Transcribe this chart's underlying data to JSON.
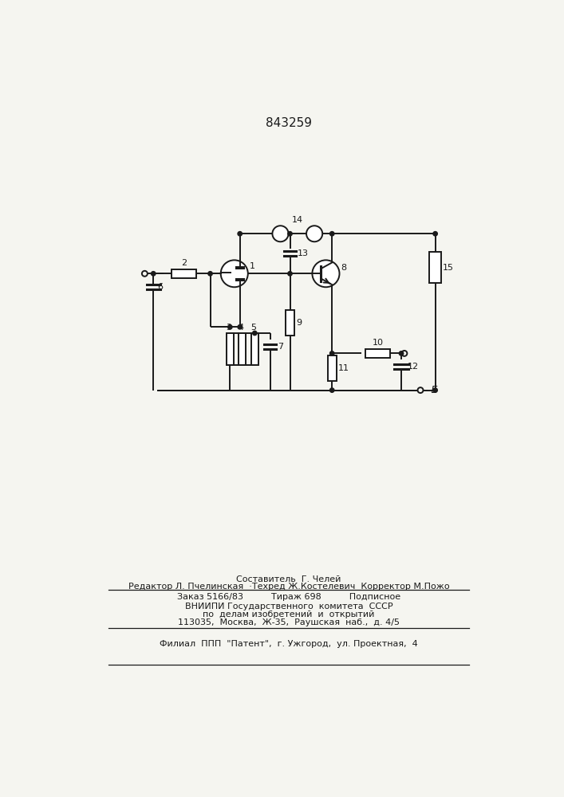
{
  "title": "843259",
  "bg_color": "#f5f5f0",
  "line_color": "#1a1a1a",
  "lw": 1.4,
  "footer_lines": [
    "Составитель  Г. Челей",
    "Редактор Л. Пчелинская  ·Техред Ж.Костелевич  Корректор М.Пожо"
  ],
  "footer_table_line1": "Заказ 5166/83          Тираж 698          Подписное",
  "footer_table_line2": "ВНИИПИ Государственного  комитета  СССР",
  "footer_table_line3": "по  делам изобретений  и  открытий",
  "footer_table_line4": "113035,  Москва,  Ж-35,  Раушская  наб.,  д. 4/5",
  "footer_bottom": "Филиал  ППП  \"Патент\",  г. Ужгород,  ул. Проектная,  4"
}
